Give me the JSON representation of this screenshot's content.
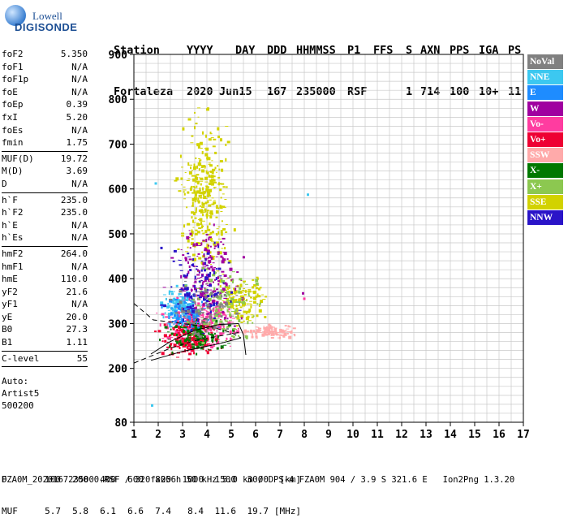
{
  "logo": {
    "line1": "Lowell",
    "line2": "DIGISONDE"
  },
  "header": {
    "columns": [
      "Station",
      "YYYY",
      "DAY",
      "DDD",
      "HHMMSS",
      "P1",
      "FFS",
      "S",
      "AXN",
      "PPS",
      "IGA",
      "PS"
    ],
    "values": [
      "Fortaleza",
      "2020",
      "Jun15",
      "167",
      "235000",
      "RSF",
      "",
      "1",
      "714",
      "100",
      "10+",
      "11"
    ]
  },
  "params": {
    "group1": [
      {
        "label": "foF2",
        "value": "5.350"
      },
      {
        "label": "foF1",
        "value": "N/A"
      },
      {
        "label": "foF1p",
        "value": "N/A"
      },
      {
        "label": "foE",
        "value": "N/A"
      },
      {
        "label": "foEp",
        "value": "0.39"
      },
      {
        "label": "fxI",
        "value": "5.20"
      },
      {
        "label": "foEs",
        "value": "N/A"
      },
      {
        "label": "fmin",
        "value": "1.75"
      }
    ],
    "group2": [
      {
        "label": "MUF(D)",
        "value": "19.72"
      },
      {
        "label": "M(D)",
        "value": "3.69"
      },
      {
        "label": "D",
        "value": "N/A"
      }
    ],
    "group3": [
      {
        "label": "h`F",
        "value": "235.0"
      },
      {
        "label": "h`F2",
        "value": "235.0"
      },
      {
        "label": "h`E",
        "value": "N/A"
      },
      {
        "label": "h`Es",
        "value": "N/A"
      }
    ],
    "group4": [
      {
        "label": "hmF2",
        "value": "264.0"
      },
      {
        "label": "hmF1",
        "value": "N/A"
      },
      {
        "label": "hmE",
        "value": "110.0"
      },
      {
        "label": "yF2",
        "value": "21.6"
      },
      {
        "label": "yF1",
        "value": "N/A"
      },
      {
        "label": "yE",
        "value": "20.0"
      },
      {
        "label": "B0",
        "value": "27.3"
      },
      {
        "label": "B1",
        "value": "1.11"
      }
    ],
    "group5": [
      {
        "label": "C-level",
        "value": "55"
      }
    ],
    "auto": [
      "Auto:",
      "Artist5",
      "500200"
    ]
  },
  "legend": [
    {
      "label": "NoVal",
      "color": "#808080"
    },
    {
      "label": "NNE",
      "color": "#3cc8f0"
    },
    {
      "label": "E",
      "color": "#1e8cff"
    },
    {
      "label": "W",
      "color": "#a000a0"
    },
    {
      "label": "Vo-",
      "color": "#ff3ca0"
    },
    {
      "label": "Vo+",
      "color": "#ee0033"
    },
    {
      "label": "SSW",
      "color": "#ffaaaa"
    },
    {
      "label": "X-",
      "color": "#007800"
    },
    {
      "label": "X+",
      "color": "#8cc850"
    },
    {
      "label": "SSE",
      "color": "#d2d200"
    },
    {
      "label": "NNW",
      "color": "#2a14c8"
    }
  ],
  "chart_data": {
    "type": "scatter",
    "xlim": [
      1,
      17
    ],
    "ylim": [
      80,
      900
    ],
    "x_ticks": [
      1,
      2,
      3,
      4,
      5,
      6,
      7,
      8,
      9,
      10,
      11,
      12,
      13,
      14,
      15,
      16,
      17
    ],
    "y_ticks": [
      80,
      200,
      300,
      400,
      500,
      600,
      700,
      800,
      900
    ],
    "grid": true,
    "clusters": [
      {
        "color": "#d2d200",
        "x": [
          2.5,
          5.2
        ],
        "y": [
          330,
          830
        ],
        "n": 340
      },
      {
        "color": "#d2d200",
        "x": [
          4.0,
          6.8
        ],
        "y": [
          290,
          420
        ],
        "n": 140
      },
      {
        "color": "#ff3ca0",
        "x": [
          1.7,
          5.6
        ],
        "y": [
          230,
          380
        ],
        "n": 320
      },
      {
        "color": "#ee0033",
        "x": [
          1.7,
          4.8
        ],
        "y": [
          210,
          330
        ],
        "n": 190
      },
      {
        "color": "#a000a0",
        "x": [
          2.0,
          5.8
        ],
        "y": [
          250,
          560
        ],
        "n": 200
      },
      {
        "color": "#3cc8f0",
        "x": [
          1.7,
          4.0
        ],
        "y": [
          280,
          400
        ],
        "n": 130
      },
      {
        "color": "#1e8cff",
        "x": [
          1.8,
          4.6
        ],
        "y": [
          270,
          380
        ],
        "n": 90
      },
      {
        "color": "#ffaaaa",
        "x": [
          5.0,
          8.0
        ],
        "y": [
          265,
          305
        ],
        "n": 110
      },
      {
        "color": "#007800",
        "x": [
          1.8,
          5.3
        ],
        "y": [
          220,
          330
        ],
        "n": 110
      },
      {
        "color": "#8cc850",
        "x": [
          2.6,
          6.5
        ],
        "y": [
          230,
          460
        ],
        "n": 130
      },
      {
        "color": "#2a14c8",
        "x": [
          1.8,
          5.5
        ],
        "y": [
          250,
          520
        ],
        "n": 110
      },
      {
        "color": "#808080",
        "x": [
          1.9,
          5.9
        ],
        "y": [
          240,
          420
        ],
        "n": 70
      }
    ],
    "outliers": [
      {
        "x": 1.7,
        "y": 120,
        "color": "#3cc8f0"
      },
      {
        "x": 1.85,
        "y": 615,
        "color": "#3cc8f0"
      },
      {
        "x": 8.1,
        "y": 590,
        "color": "#3cc8f0"
      },
      {
        "x": 7.9,
        "y": 370,
        "color": "#a000a0"
      },
      {
        "x": 7.95,
        "y": 358,
        "color": "#ff3ca0"
      }
    ],
    "trace_lines": [
      {
        "style": "solid",
        "points": [
          [
            1.7,
            218
          ],
          [
            3.0,
            238
          ],
          [
            4.5,
            255
          ],
          [
            5.4,
            268
          ]
        ]
      },
      {
        "style": "solid",
        "points": [
          [
            1.7,
            232
          ],
          [
            2.5,
            260
          ],
          [
            3.5,
            285
          ],
          [
            4.5,
            298
          ],
          [
            5.3,
            300
          ]
        ]
      },
      {
        "style": "solid",
        "points": [
          [
            5.3,
            300
          ],
          [
            5.5,
            275
          ],
          [
            5.6,
            230
          ]
        ]
      },
      {
        "style": "dashed",
        "points": [
          [
            1.0,
            345
          ],
          [
            1.8,
            308
          ],
          [
            3.0,
            300
          ],
          [
            4.2,
            292
          ],
          [
            5.0,
            280
          ],
          [
            5.4,
            268
          ]
        ]
      },
      {
        "style": "dashed",
        "points": [
          [
            1.0,
            212
          ],
          [
            2.5,
            245
          ],
          [
            3.5,
            262
          ],
          [
            4.5,
            272
          ],
          [
            5.3,
            280
          ]
        ]
      }
    ]
  },
  "footer": {
    "d_label": "D",
    "d_values": [
      "100",
      "200",
      "400",
      "600",
      "800",
      "1000",
      "1500",
      "3000",
      "[km]"
    ],
    "muf_label": "MUF",
    "muf_values": [
      "5.7",
      "5.8",
      "6.1",
      "6.6",
      "7.4",
      "8.4",
      "11.6",
      "19.7",
      "[MHz]"
    ],
    "bottom": "FZA0M_2020167235000.RSF / 320fx256h 50 kHz 5.0 km / DPS-4 FZA0M 904 / 3.9 S 321.6 E   Ion2Png 1.3.20"
  }
}
